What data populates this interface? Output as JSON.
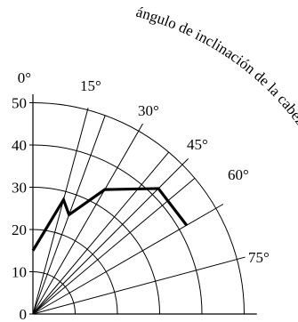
{
  "chart_data": {
    "type": "line",
    "title": "ángulo de inclinación de la cabeza",
    "coordinate_system": "polar-quarter",
    "angle_unit": "degrees",
    "angle_zero_direction": "up",
    "angle_labels": [
      "0°",
      "15°",
      "30°",
      "45°",
      "60°",
      "75°"
    ],
    "spoke_angles": [
      0,
      15,
      20,
      30,
      40,
      45,
      50,
      60,
      75
    ],
    "radial_ticks": [
      0,
      10,
      20,
      30,
      40,
      50
    ],
    "radial_range": [
      0,
      50
    ],
    "grid": true,
    "series": [
      {
        "angles": [
          0,
          15,
          20,
          30,
          45,
          60
        ],
        "radii": [
          15,
          28,
          25,
          34,
          42,
          42
        ]
      }
    ]
  }
}
